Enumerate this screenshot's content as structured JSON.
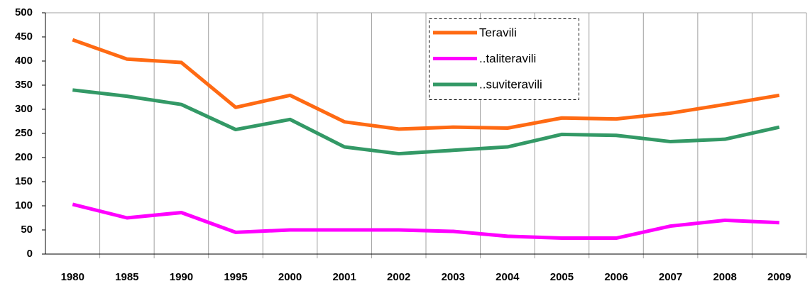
{
  "chart_data": {
    "type": "line",
    "categories": [
      "1980",
      "1985",
      "1990",
      "1995",
      "2000",
      "2001",
      "2002",
      "2003",
      "2004",
      "2005",
      "2006",
      "2007",
      "2008",
      "2009"
    ],
    "series": [
      {
        "name": "Teravili",
        "color": "#ff6a13",
        "values": [
          444,
          404,
          397,
          304,
          329,
          274,
          259,
          263,
          261,
          282,
          280,
          292,
          310,
          329
        ]
      },
      {
        "name": "..taliteravili",
        "color": "#ff00ff",
        "values": [
          103,
          75,
          86,
          45,
          50,
          50,
          50,
          47,
          37,
          33,
          33,
          58,
          70,
          65
        ]
      },
      {
        "name": "..suviteravili",
        "color": "#339966",
        "values": [
          340,
          327,
          310,
          258,
          279,
          222,
          208,
          215,
          222,
          248,
          246,
          233,
          238,
          263
        ]
      }
    ],
    "ylim": [
      0,
      500
    ],
    "yticks": [
      0,
      50,
      100,
      150,
      200,
      250,
      300,
      350,
      400,
      450,
      500
    ],
    "legend": "top-center"
  }
}
